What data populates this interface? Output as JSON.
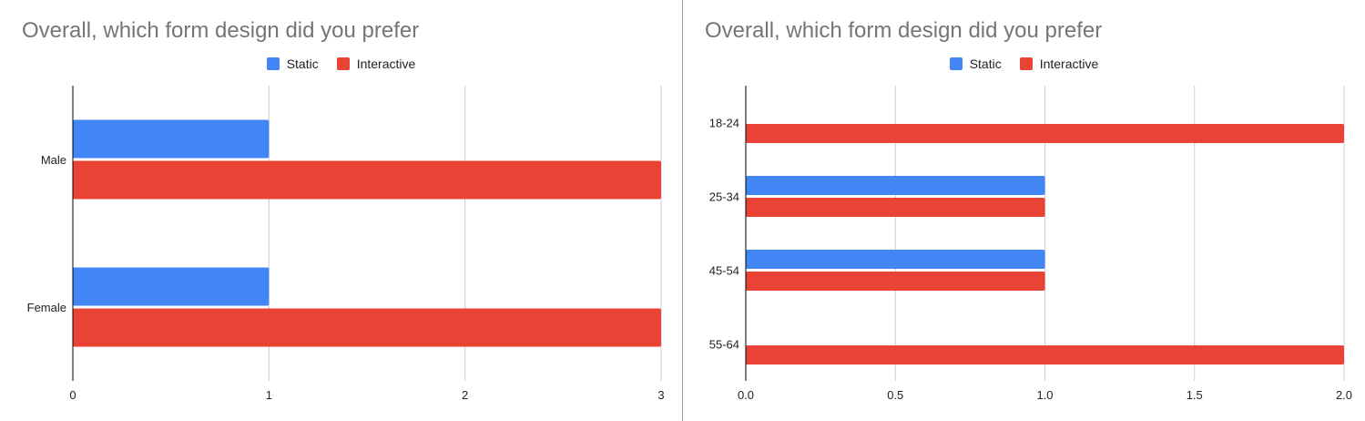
{
  "colors": {
    "static": "#4285f4",
    "interactive": "#ea4335",
    "grid": "#cccccc",
    "axis": "#000000"
  },
  "chart_data": [
    {
      "type": "bar",
      "orientation": "horizontal",
      "title": "Overall, which form design did you prefer",
      "legend_position": "top",
      "grid": true,
      "categories": [
        "Male",
        "Female"
      ],
      "series": [
        {
          "name": "Static",
          "values": [
            1,
            1
          ]
        },
        {
          "name": "Interactive",
          "values": [
            3,
            3
          ]
        }
      ],
      "xlim": [
        0,
        3
      ],
      "xticks": [
        "0",
        "1",
        "2",
        "3"
      ]
    },
    {
      "type": "bar",
      "orientation": "horizontal",
      "title": "Overall, which form design did you prefer",
      "legend_position": "top",
      "grid": true,
      "categories": [
        "18-24",
        "25-34",
        "45-54",
        "55-64"
      ],
      "series": [
        {
          "name": "Static",
          "values": [
            0,
            1,
            1,
            0
          ]
        },
        {
          "name": "Interactive",
          "values": [
            2,
            1,
            1,
            2
          ]
        }
      ],
      "xlim": [
        0,
        2
      ],
      "xticks": [
        "0.0",
        "0.5",
        "1.0",
        "1.5",
        "2.0"
      ]
    }
  ]
}
